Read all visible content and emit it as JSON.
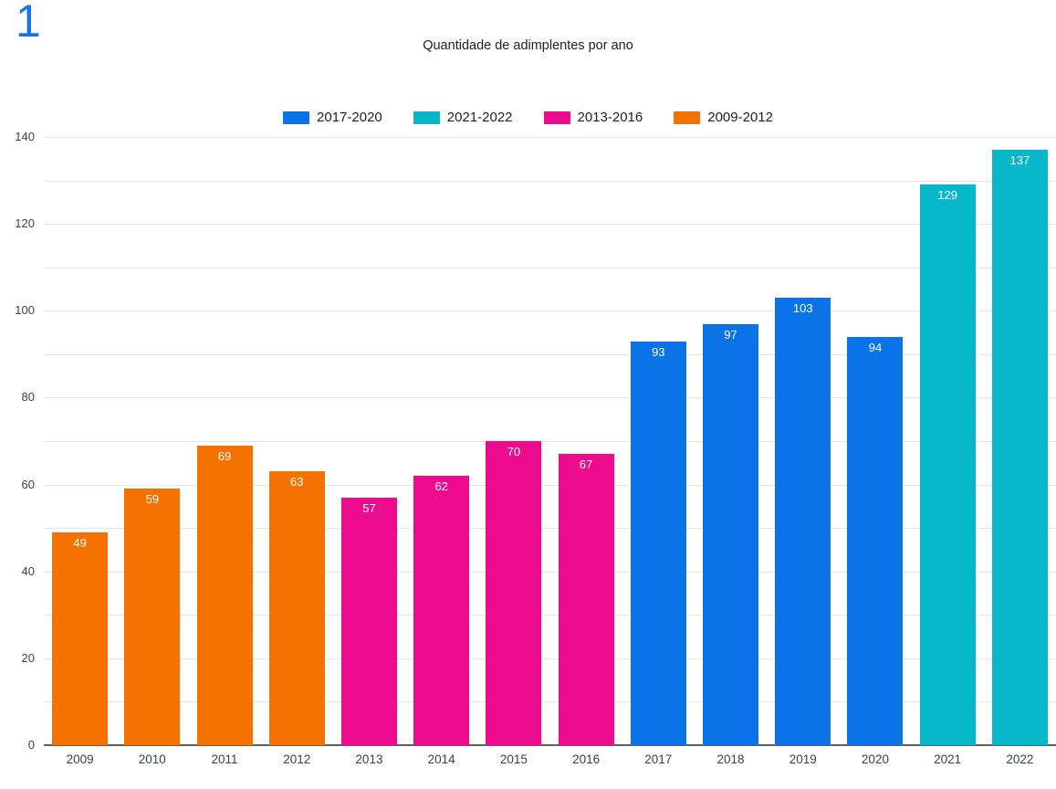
{
  "page": {
    "corner_index": "1"
  },
  "chart_data": {
    "type": "bar",
    "title": "Quantidade de adimplentes por ano",
    "xlabel": "",
    "ylabel": "",
    "ylim": [
      0,
      140
    ],
    "y_major_ticks": [
      0,
      20,
      40,
      60,
      80,
      100,
      120,
      140
    ],
    "y_minor_step": 10,
    "grid": true,
    "legend_position": "top-center",
    "categories": [
      "2009",
      "2010",
      "2011",
      "2012",
      "2013",
      "2014",
      "2015",
      "2016",
      "2017",
      "2018",
      "2019",
      "2020",
      "2021",
      "2022"
    ],
    "values": [
      49,
      59,
      69,
      63,
      57,
      62,
      70,
      67,
      93,
      97,
      103,
      94,
      129,
      137
    ],
    "bar_groups": [
      "2009-2012",
      "2009-2012",
      "2009-2012",
      "2009-2012",
      "2013-2016",
      "2013-2016",
      "2013-2016",
      "2013-2016",
      "2017-2020",
      "2017-2020",
      "2017-2020",
      "2017-2020",
      "2021-2022",
      "2021-2022"
    ],
    "legend": [
      {
        "label": "2017-2020",
        "color": "#0B73E8"
      },
      {
        "label": "2021-2022",
        "color": "#06B6C9"
      },
      {
        "label": "2013-2016",
        "color": "#EC0B8D"
      },
      {
        "label": "2009-2012",
        "color": "#F57201"
      }
    ],
    "colors": {
      "grid_line": "#E6E6E6",
      "axis_baseline": "#616161",
      "axis_text": "#3C4043",
      "title_text": "#212121",
      "bar_value_text": "#FFFFFF",
      "corner_index": "#1A73E8"
    }
  }
}
